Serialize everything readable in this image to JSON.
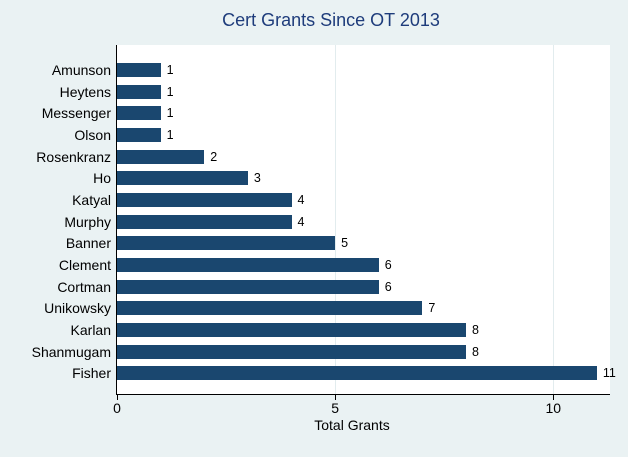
{
  "chart_data": {
    "type": "bar",
    "orientation": "horizontal",
    "title": "Cert Grants Since OT 2013",
    "xlabel": "Total Grants",
    "categories": [
      "Amunson",
      "Heytens",
      "Messenger",
      "Olson",
      "Rosenkranz",
      "Ho",
      "Katyal",
      "Murphy",
      "Banner",
      "Clement",
      "Cortman",
      "Unikowsky",
      "Karlan",
      "Shanmugam",
      "Fisher"
    ],
    "values": [
      1,
      1,
      1,
      1,
      2,
      3,
      4,
      4,
      5,
      6,
      6,
      7,
      8,
      8,
      11
    ],
    "xticks": [
      0,
      5,
      10
    ],
    "xlim": [
      0,
      11.3
    ],
    "grid": true,
    "legend": "none",
    "colors": {
      "background": "#EAF2F3",
      "plot_background": "#FFFFFF",
      "bar": "#1A476F",
      "title_text": "#1E3C7B",
      "grid": "#E2ECEE",
      "axis": "#000000",
      "text": "#000000"
    }
  }
}
